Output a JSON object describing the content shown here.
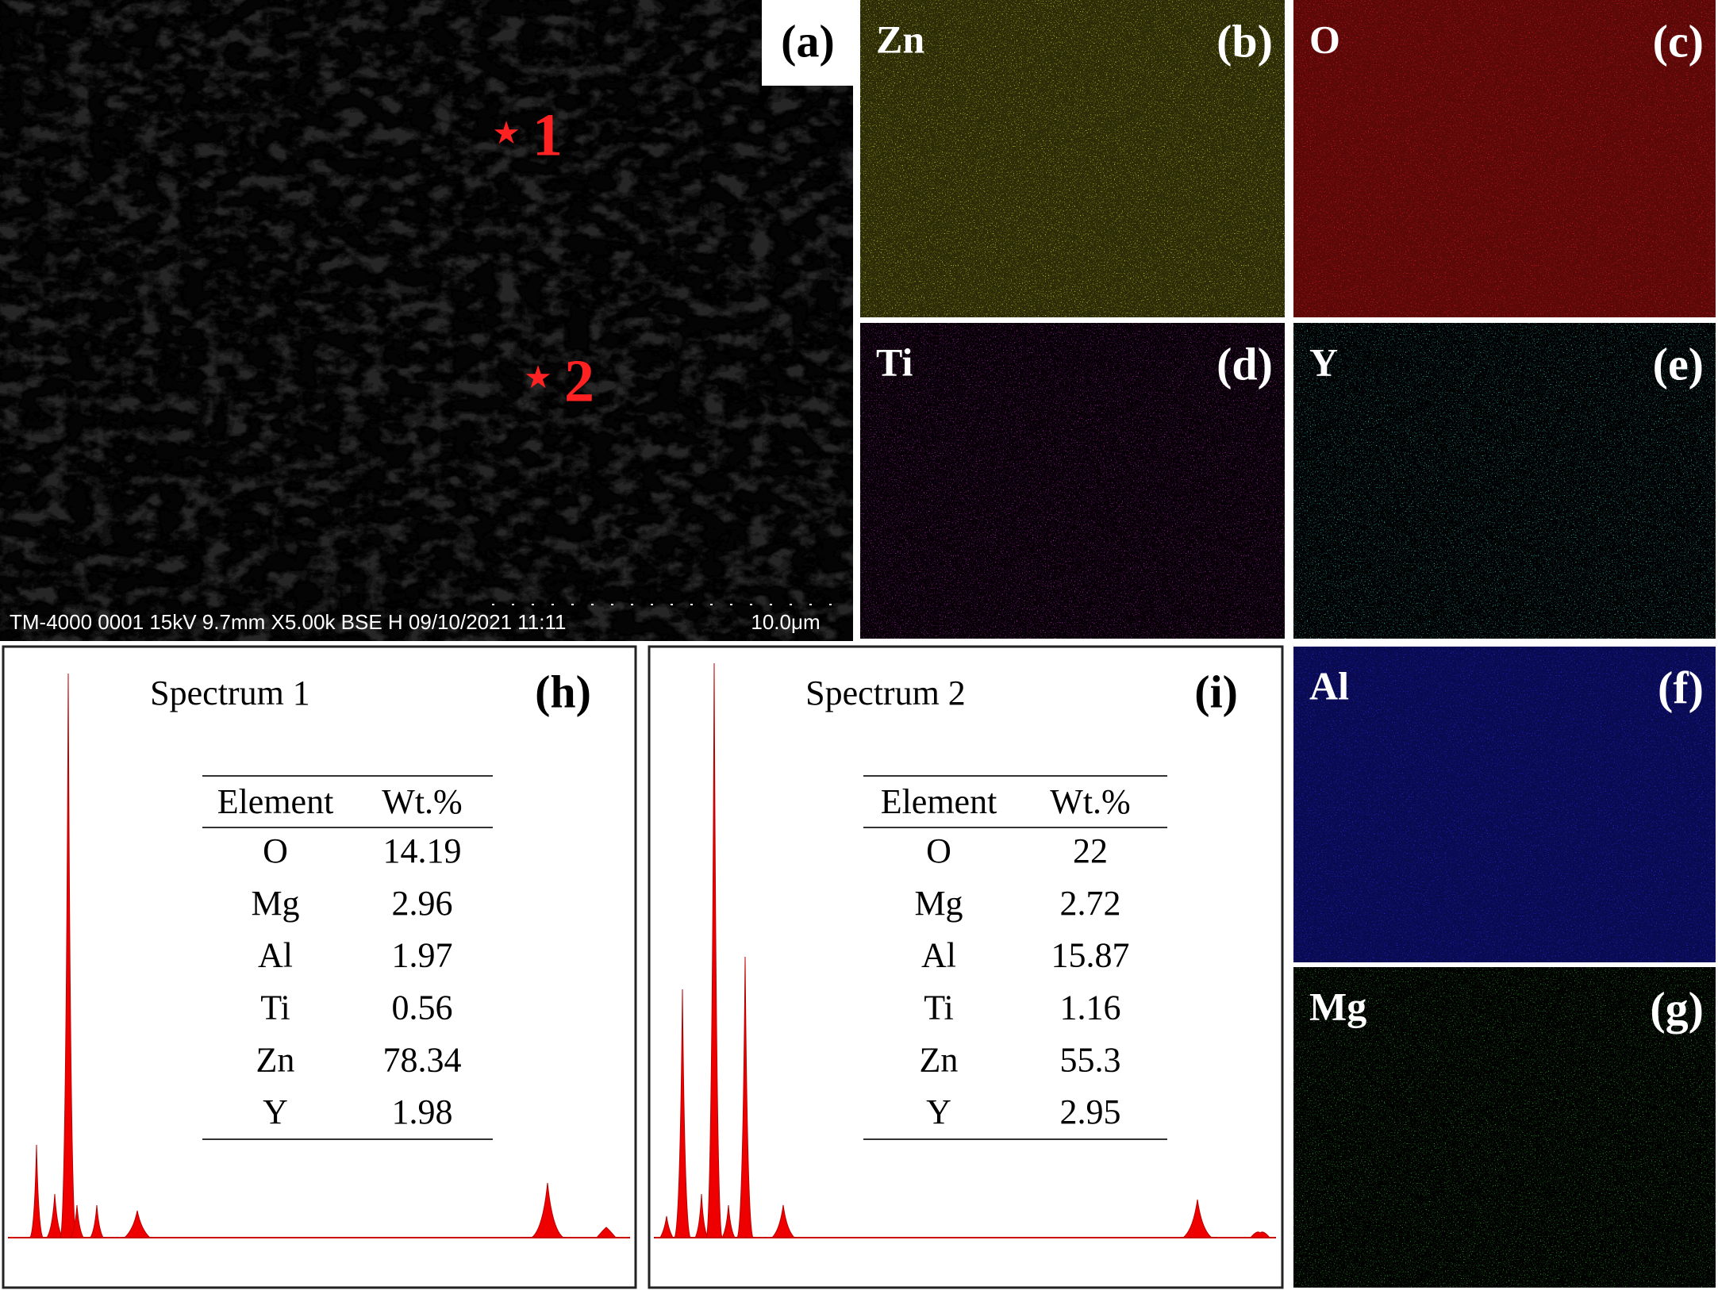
{
  "sem": {
    "label": "(a)",
    "markers": [
      "1",
      "2"
    ],
    "info": "TM-4000 0001 15kV 9.7mm X5.00k BSE H 09/10/2021 11:11",
    "scale": "10.0μm"
  },
  "maps": [
    {
      "element": "Zn",
      "label": "(b)"
    },
    {
      "element": "O",
      "label": "(c)"
    },
    {
      "element": "Ti",
      "label": "(d)"
    },
    {
      "element": "Y",
      "label": "(e)"
    },
    {
      "element": "Al",
      "label": "(f)"
    },
    {
      "element": "Mg",
      "label": "(g)"
    }
  ],
  "spectra": [
    {
      "title": "Spectrum 1",
      "label": "(h)",
      "header": [
        "Element",
        "Wt.%"
      ],
      "rows": [
        [
          "O",
          14.19
        ],
        [
          "Mg",
          2.96
        ],
        [
          "Al",
          1.97
        ],
        [
          "Ti",
          0.56
        ],
        [
          "Zn",
          78.34
        ],
        [
          "Y",
          1.98
        ]
      ]
    },
    {
      "title": "Spectrum 2",
      "label": "(i)",
      "header": [
        "Element",
        "Wt.%"
      ],
      "rows": [
        [
          "O",
          22
        ],
        [
          "Mg",
          2.72
        ],
        [
          "Al",
          15.87
        ],
        [
          "Ti",
          1.16
        ],
        [
          "Zn",
          55.3
        ],
        [
          "Y",
          2.95
        ]
      ]
    }
  ]
}
